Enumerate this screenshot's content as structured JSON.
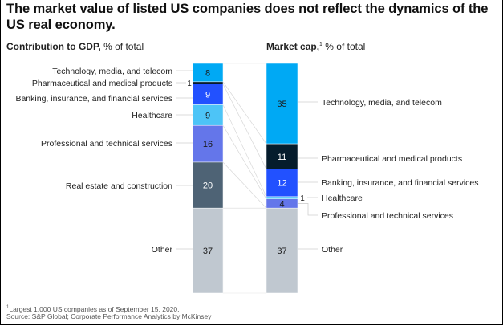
{
  "chart_data": {
    "type": "bar",
    "subtype": "stacked-100-comparison",
    "title": "The market value of listed US companies does not reflect the dynamics of the US real economy.",
    "series": [
      {
        "name": "Contribution to GDP",
        "label_bold": "Contribution to GDP,",
        "label_rest": " % of total",
        "footnote_marker": "",
        "segments": [
          {
            "category": "Technology, media, and telecom",
            "value": 8,
            "color": "#00A9F4",
            "text_color": "#1a1a1a"
          },
          {
            "category": "Pharmaceutical and medical products",
            "value": 1,
            "color": "#051C2C",
            "text_color": "#ffffff"
          },
          {
            "category": "Banking, insurance, and financial services",
            "value": 9,
            "color": "#2251FF",
            "text_color": "#ffffff"
          },
          {
            "category": "Healthcare",
            "value": 9,
            "color": "#4DC4F7",
            "text_color": "#1a1a1a"
          },
          {
            "category": "Professional and technical services",
            "value": 16,
            "color": "#6476EA",
            "text_color": "#1a1a1a"
          },
          {
            "category": "Real estate and construction",
            "value": 20,
            "color": "#4E6375",
            "text_color": "#ffffff"
          },
          {
            "category": "Other",
            "value": 37,
            "color": "#C0C8D0",
            "text_color": "#1a1a1a"
          }
        ]
      },
      {
        "name": "Market cap",
        "label_bold": "Market cap,",
        "label_rest": " % of total",
        "footnote_marker": "1",
        "segments": [
          {
            "category": "Technology, media, and telecom",
            "value": 35,
            "color": "#00A9F4",
            "text_color": "#1a1a1a"
          },
          {
            "category": "Pharmaceutical and medical products",
            "value": 11,
            "color": "#051C2C",
            "text_color": "#ffffff"
          },
          {
            "category": "Banking, insurance, and financial services",
            "value": 12,
            "color": "#2251FF",
            "text_color": "#ffffff"
          },
          {
            "category": "Healthcare",
            "value": 1,
            "color": "#4DC4F7",
            "text_color": "#1a1a1a"
          },
          {
            "category": "Professional and technical services",
            "value": 4,
            "color": "#6476EA",
            "text_color": "#1a1a1a"
          },
          {
            "category": "Real estate and construction",
            "value": 0,
            "color": "#4E6375",
            "text_color": "#ffffff"
          },
          {
            "category": "Other",
            "value": 37,
            "color": "#C0C8D0",
            "text_color": "#1a1a1a"
          }
        ]
      }
    ],
    "ylim": [
      0,
      100
    ],
    "unit": "% of total",
    "legend": "direct labels beside bars",
    "grid": false
  },
  "footnotes": {
    "marker": "1",
    "note": "Largest 1,000 US companies as of September 15, 2020.",
    "source": "Source: S&P Global; Corporate Performance Analytics by McKinsey"
  }
}
